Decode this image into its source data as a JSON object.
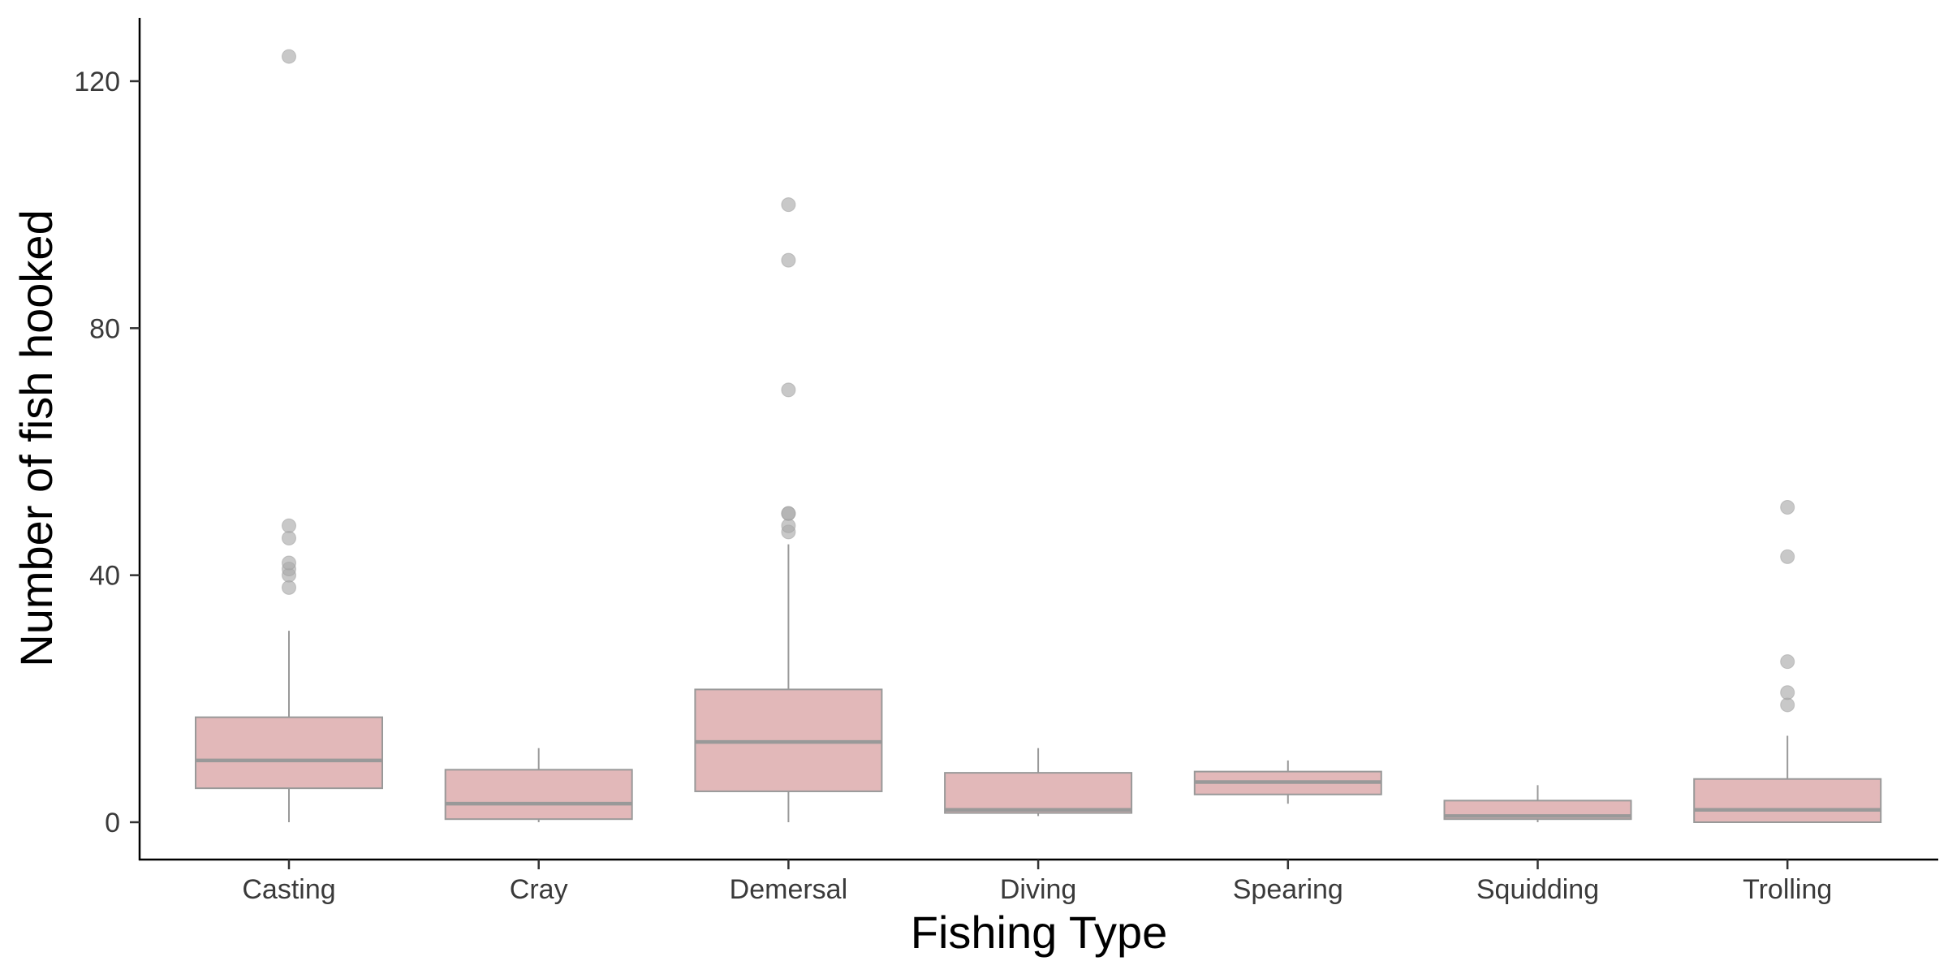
{
  "chart_data": {
    "type": "box",
    "xlabel": "Fishing Type",
    "ylabel": "Number of fish hooked",
    "ylim": [
      -6,
      130
    ],
    "yticks": [
      0,
      40,
      80,
      120
    ],
    "grid": false,
    "box_color": "#e2b8b9",
    "line_color": "#999999",
    "categories": [
      "Casting",
      "Cray",
      "Demersal",
      "Diving",
      "Spearing",
      "Squidding",
      "Trolling"
    ],
    "boxes": [
      {
        "category": "Casting",
        "whisker_low": 0,
        "q1": 5.5,
        "median": 10,
        "q3": 17,
        "whisker_high": 31,
        "outliers": [
          38,
          40,
          41,
          42,
          46,
          48,
          124
        ]
      },
      {
        "category": "Cray",
        "whisker_low": 0,
        "q1": 0.5,
        "median": 3,
        "q3": 8.5,
        "whisker_high": 12,
        "outliers": []
      },
      {
        "category": "Demersal",
        "whisker_low": 0,
        "q1": 5,
        "median": 13,
        "q3": 21.5,
        "whisker_high": 45,
        "outliers": [
          47,
          48,
          50,
          50,
          70,
          91,
          100
        ]
      },
      {
        "category": "Diving",
        "whisker_low": 1,
        "q1": 1.5,
        "median": 2,
        "q3": 8,
        "whisker_high": 12,
        "outliers": []
      },
      {
        "category": "Spearing",
        "whisker_low": 3,
        "q1": 4.5,
        "median": 6.5,
        "q3": 8.2,
        "whisker_high": 10,
        "outliers": []
      },
      {
        "category": "Squidding",
        "whisker_low": 0,
        "q1": 0.5,
        "median": 1,
        "q3": 3.5,
        "whisker_high": 6,
        "outliers": []
      },
      {
        "category": "Trolling",
        "whisker_low": 0,
        "q1": 0,
        "median": 2,
        "q3": 7,
        "whisker_high": 14,
        "outliers": [
          19,
          21,
          26,
          43,
          51
        ]
      }
    ]
  }
}
